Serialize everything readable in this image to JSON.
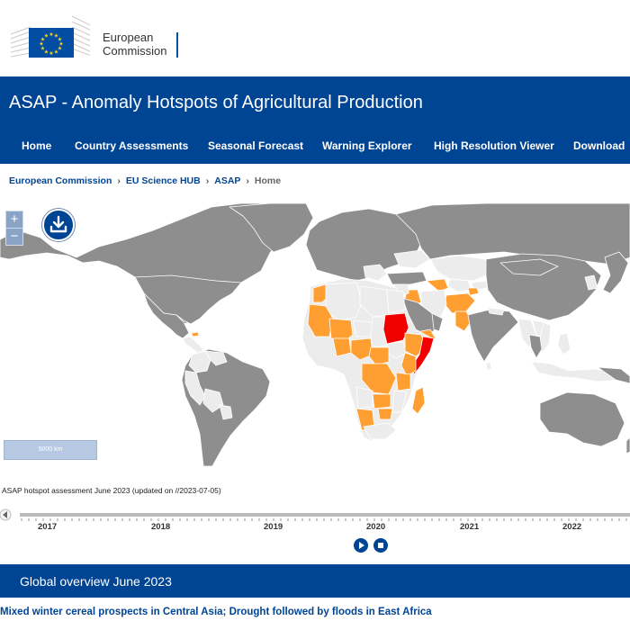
{
  "logo": {
    "line1": "European",
    "line2": "Commission"
  },
  "site_title": "ASAP - Anomaly Hotspots of Agricultural Production",
  "nav": [
    {
      "label": "Home"
    },
    {
      "label": "Country Assessments"
    },
    {
      "label": "Seasonal Forecast"
    },
    {
      "label": "Warning Explorer"
    },
    {
      "label": "High Resolution Viewer"
    },
    {
      "label": "Download"
    }
  ],
  "breadcrumb": [
    "European Commission",
    "EU Science HUB",
    "ASAP",
    "Home"
  ],
  "map": {
    "zoom_in": "+",
    "zoom_out": "−",
    "scale_label": "5000 km",
    "icons": [
      "plus-icon",
      "minus-icon",
      "download-icon"
    ],
    "colors": {
      "no_hotspot": "#ececec",
      "no_data": "#8e8e8e",
      "hotspot": "#ff9f32",
      "major_hotspot": "#f00000",
      "ocean": "#ffffff"
    }
  },
  "assessment_label": "ASAP hotspot assessment June 2023 (updated on //2023-07-05)",
  "timeline": {
    "years": [
      "2017",
      "2018",
      "2019",
      "2020",
      "2021",
      "2022"
    ],
    "controls": [
      "play-icon",
      "stop-icon",
      "back-arrow-icon"
    ]
  },
  "overview_title": "Global overview June 2023",
  "headline": "Mixed winter cereal prospects in Central Asia; Drought followed by floods in East Africa"
}
